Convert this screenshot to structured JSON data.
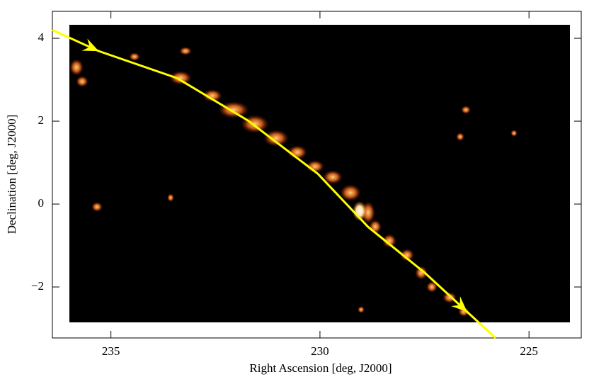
{
  "chart_data": {
    "type": "image-map",
    "xlabel": "Right Ascension [deg, J2000]",
    "ylabel": "Declination [deg, J2000]",
    "xlim": [
      236.4,
      223.75
    ],
    "ylim": [
      -3.23,
      4.65
    ],
    "xticks": [
      235,
      230,
      225
    ],
    "yticks": [
      {
        "value": -2,
        "label": "−2"
      },
      0,
      2,
      4
    ],
    "series": [
      {
        "color": "#ffff00",
        "x": [
          236.4,
          235.29,
          233.42,
          231.73,
          230.05,
          228.85,
          227.49,
          226.48,
          225.8
        ],
        "values": [
          4.2,
          3.69,
          3.04,
          2.02,
          0.73,
          -0.55,
          -1.66,
          -2.6,
          -3.23
        ]
      }
    ]
  }
}
